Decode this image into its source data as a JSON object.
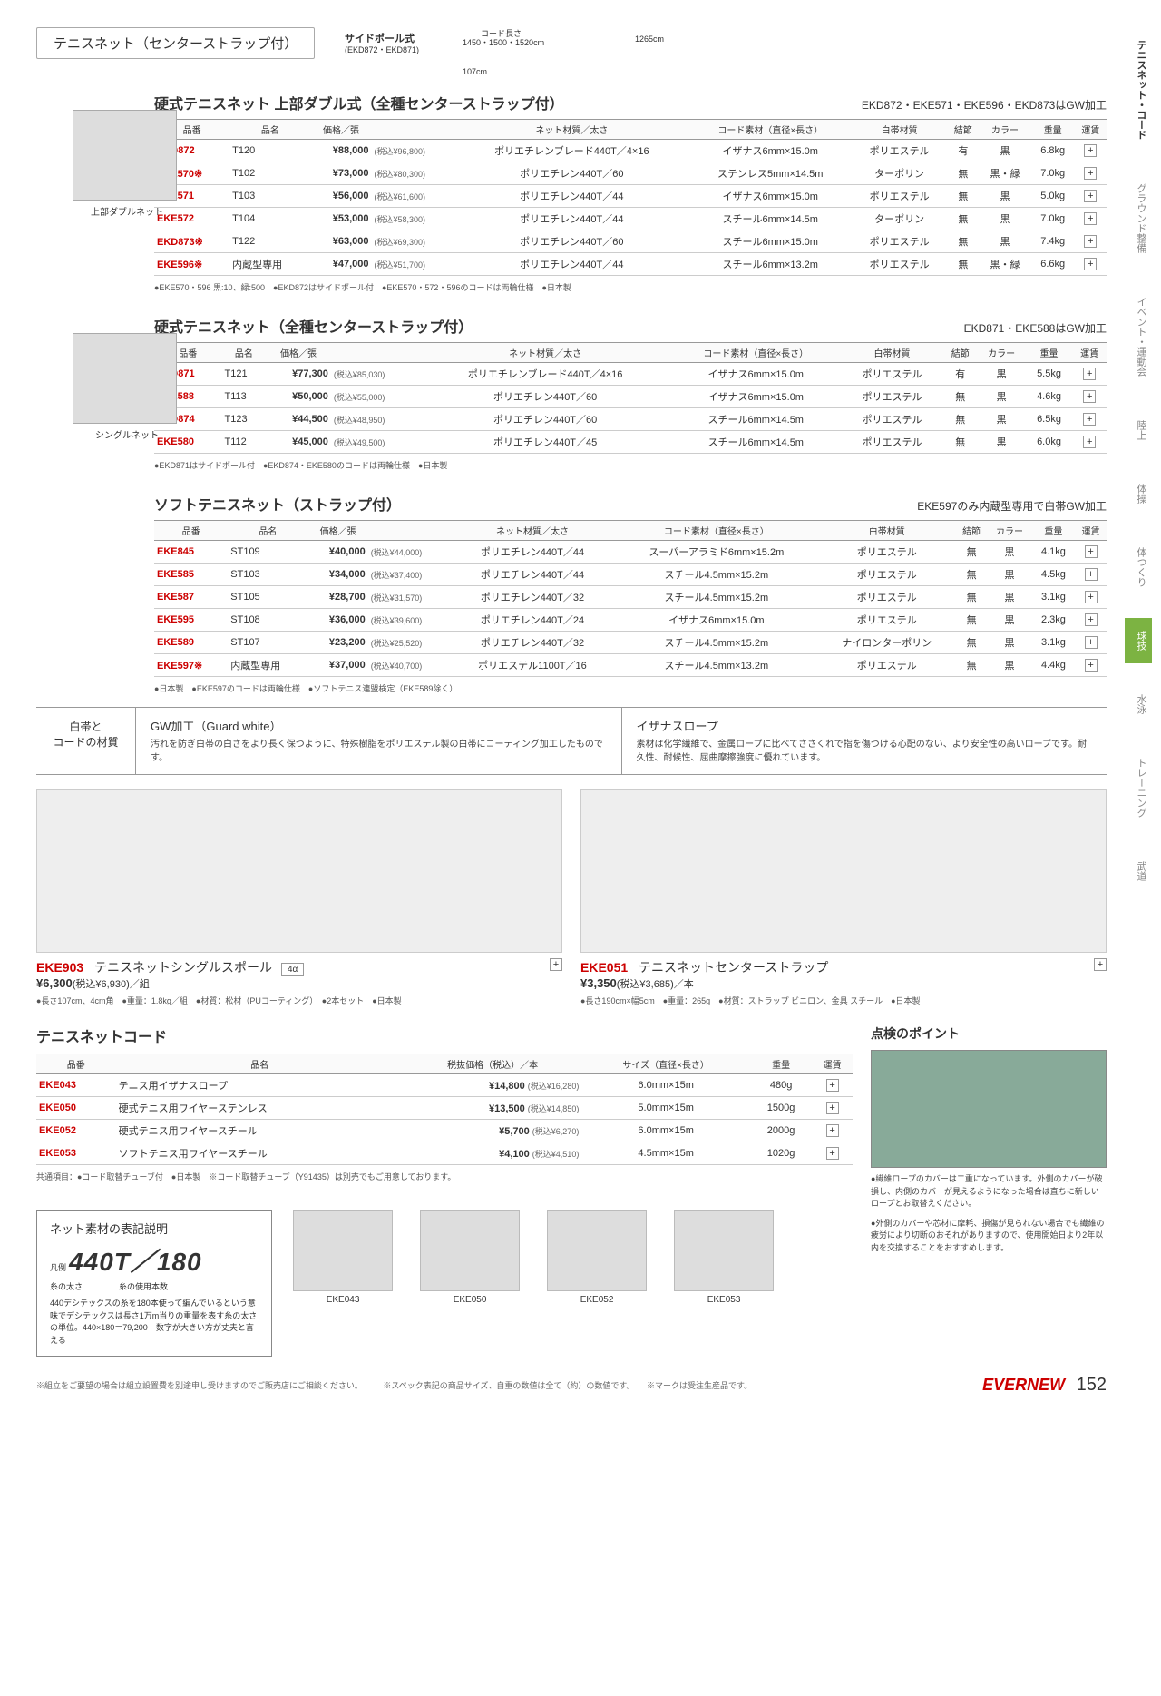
{
  "page_title": "テニスネット（センターストラップ付）",
  "diagram_label": "サイドポール式",
  "diagram_sub": "(EKD872・EKD871)",
  "diagram_cord": "コード長さ",
  "diagram_cord_len": "1450・1500・1520cm",
  "diagram_width": "1265cm",
  "diagram_height": "107cm",
  "sections": [
    {
      "title": "硬式テニスネット 上部ダブル式（全種センターストラップ付）",
      "note": "EKD872・EKE571・EKE596・EKD873はGW加工",
      "thumb_cap": "上部ダブルネット",
      "headers": [
        "品番",
        "品名",
        "価格／張",
        "",
        "ネット材質／太さ",
        "コード素材（直径×長さ）",
        "白帯材質",
        "結節",
        "カラー",
        "重量",
        "運賃"
      ],
      "rows": [
        {
          "code": "EKD872",
          "name": "T120",
          "price": "¥88,000",
          "tax": "(税込¥96,800)",
          "mat": "ポリエチレンブレード440T／4×16",
          "cord": "イザナス6mm×15.0m",
          "belt": "ポリエステル",
          "knot": "有",
          "color": "黒",
          "wt": "6.8kg"
        },
        {
          "code": "EKE570※",
          "name": "T102",
          "price": "¥73,000",
          "tax": "(税込¥80,300)",
          "mat": "ポリエチレン440T／60",
          "cord": "ステンレス5mm×14.5m",
          "belt": "ターポリン",
          "knot": "無",
          "color": "黒・緑",
          "wt": "7.0kg"
        },
        {
          "code": "EKE571",
          "name": "T103",
          "price": "¥56,000",
          "tax": "(税込¥61,600)",
          "mat": "ポリエチレン440T／44",
          "cord": "イザナス6mm×15.0m",
          "belt": "ポリエステル",
          "knot": "無",
          "color": "黒",
          "wt": "5.0kg"
        },
        {
          "code": "EKE572",
          "name": "T104",
          "price": "¥53,000",
          "tax": "(税込¥58,300)",
          "mat": "ポリエチレン440T／44",
          "cord": "スチール6mm×14.5m",
          "belt": "ターポリン",
          "knot": "無",
          "color": "黒",
          "wt": "7.0kg"
        },
        {
          "code": "EKD873※",
          "name": "T122",
          "price": "¥63,000",
          "tax": "(税込¥69,300)",
          "mat": "ポリエチレン440T／60",
          "cord": "スチール6mm×15.0m",
          "belt": "ポリエステル",
          "knot": "無",
          "color": "黒",
          "wt": "7.4kg"
        },
        {
          "code": "EKE596※",
          "name": "内蔵型専用",
          "price": "¥47,000",
          "tax": "(税込¥51,700)",
          "mat": "ポリエチレン440T／44",
          "cord": "スチール6mm×13.2m",
          "belt": "ポリエステル",
          "knot": "無",
          "color": "黒・緑",
          "wt": "6.6kg"
        }
      ],
      "footnote": "●EKE570・596 黒:10、緑:500　●EKD872はサイドポール付　●EKE570・572・596のコードは両輪仕様　●日本製"
    },
    {
      "title": "硬式テニスネット（全種センターストラップ付）",
      "note": "EKD871・EKE588はGW加工",
      "thumb_cap": "シングルネット",
      "headers": [
        "品番",
        "品名",
        "価格／張",
        "",
        "ネット材質／太さ",
        "コード素材（直径×長さ）",
        "白帯材質",
        "結節",
        "カラー",
        "重量",
        "運賃"
      ],
      "rows": [
        {
          "code": "EKD871",
          "name": "T121",
          "price": "¥77,300",
          "tax": "(税込¥85,030)",
          "mat": "ポリエチレンブレード440T／4×16",
          "cord": "イザナス6mm×15.0m",
          "belt": "ポリエステル",
          "knot": "有",
          "color": "黒",
          "wt": "5.5kg"
        },
        {
          "code": "EKE588",
          "name": "T113",
          "price": "¥50,000",
          "tax": "(税込¥55,000)",
          "mat": "ポリエチレン440T／60",
          "cord": "イザナス6mm×15.0m",
          "belt": "ポリエステル",
          "knot": "無",
          "color": "黒",
          "wt": "4.6kg"
        },
        {
          "code": "EKD874",
          "name": "T123",
          "price": "¥44,500",
          "tax": "(税込¥48,950)",
          "mat": "ポリエチレン440T／60",
          "cord": "スチール6mm×14.5m",
          "belt": "ポリエステル",
          "knot": "無",
          "color": "黒",
          "wt": "6.5kg"
        },
        {
          "code": "EKE580",
          "name": "T112",
          "price": "¥45,000",
          "tax": "(税込¥49,500)",
          "mat": "ポリエチレン440T／45",
          "cord": "スチール6mm×14.5m",
          "belt": "ポリエステル",
          "knot": "無",
          "color": "黒",
          "wt": "6.0kg"
        }
      ],
      "footnote": "●EKD871はサイドポール付　●EKD874・EKE580のコードは両輪仕様　●日本製"
    },
    {
      "title": "ソフトテニスネット（ストラップ付）",
      "note": "EKE597のみ内蔵型専用で白帯GW加工",
      "thumb_cap": "",
      "headers": [
        "品番",
        "品名",
        "価格／張",
        "",
        "ネット材質／太さ",
        "コード素材（直径×長さ）",
        "白帯材質",
        "結節",
        "カラー",
        "重量",
        "運賃"
      ],
      "rows": [
        {
          "code": "EKE845",
          "name": "ST109",
          "price": "¥40,000",
          "tax": "(税込¥44,000)",
          "mat": "ポリエチレン440T／44",
          "cord": "スーパーアラミド6mm×15.2m",
          "belt": "ポリエステル",
          "knot": "無",
          "color": "黒",
          "wt": "4.1kg"
        },
        {
          "code": "EKE585",
          "name": "ST103",
          "price": "¥34,000",
          "tax": "(税込¥37,400)",
          "mat": "ポリエチレン440T／44",
          "cord": "スチール4.5mm×15.2m",
          "belt": "ポリエステル",
          "knot": "無",
          "color": "黒",
          "wt": "4.5kg"
        },
        {
          "code": "EKE587",
          "name": "ST105",
          "price": "¥28,700",
          "tax": "(税込¥31,570)",
          "mat": "ポリエチレン440T／32",
          "cord": "スチール4.5mm×15.2m",
          "belt": "ポリエステル",
          "knot": "無",
          "color": "黒",
          "wt": "3.1kg"
        },
        {
          "code": "EKE595",
          "name": "ST108",
          "price": "¥36,000",
          "tax": "(税込¥39,600)",
          "mat": "ポリエチレン440T／24",
          "cord": "イザナス6mm×15.0m",
          "belt": "ポリエステル",
          "knot": "無",
          "color": "黒",
          "wt": "2.3kg"
        },
        {
          "code": "EKE589",
          "name": "ST107",
          "price": "¥23,200",
          "tax": "(税込¥25,520)",
          "mat": "ポリエチレン440T／32",
          "cord": "スチール4.5mm×15.2m",
          "belt": "ナイロンターポリン",
          "knot": "無",
          "color": "黒",
          "wt": "3.1kg"
        },
        {
          "code": "EKE597※",
          "name": "内蔵型専用",
          "price": "¥37,000",
          "tax": "(税込¥40,700)",
          "mat": "ポリエステル1100T／16",
          "cord": "スチール4.5mm×13.2m",
          "belt": "ポリエステル",
          "knot": "無",
          "color": "黒",
          "wt": "4.4kg"
        }
      ],
      "footnote": "●日本製　●EKE597のコードは両輪仕様　●ソフトテニス連盟検定（EKE589除く）"
    }
  ],
  "info_label": "白帯と\nコードの材質",
  "info_gw_title": "GW加工（Guard white）",
  "info_gw_desc": "汚れを防ぎ白帯の白さをより長く保つように、特殊樹脂をポリエステル製の白帯にコーティング加工したものです。",
  "info_iz_title": "イザナスロープ",
  "info_iz_desc": "素材は化学繊維で、金属ロープに比べてささくれで指を傷つける心配のない、より安全性の高いロープです。耐久性、耐候性、屈曲摩擦強度に優れています。",
  "card1": {
    "code": "EKE903",
    "name": "テニスネットシングルスポール",
    "price": "¥6,300",
    "tax": "(税込¥6,930)／組",
    "badge": "4α",
    "desc": "●長さ107cm、4cm角　●重量：1.8kg／組　●材質：松材（PUコーティング）　●2本セット　●日本製"
  },
  "card2": {
    "code": "EKE051",
    "name": "テニスネットセンターストラップ",
    "price": "¥3,350",
    "tax": "(税込¥3,685)／本",
    "desc": "●長さ190cm×幅5cm　●重量：265g　●材質：ストラップ ビニロン、金具 スチール　●日本製"
  },
  "cord_title": "テニスネットコード",
  "cord_headers": [
    "品番",
    "品名",
    "税抜価格（税込）／本",
    "サイズ（直径×長さ）",
    "重量",
    "運賃"
  ],
  "cord_rows": [
    {
      "code": "EKE043",
      "name": "テニス用イザナスロープ",
      "price": "¥14,800",
      "tax": "(税込¥16,280)",
      "size": "6.0mm×15m",
      "wt": "480g"
    },
    {
      "code": "EKE050",
      "name": "硬式テニス用ワイヤーステンレス",
      "price": "¥13,500",
      "tax": "(税込¥14,850)",
      "size": "5.0mm×15m",
      "wt": "1500g"
    },
    {
      "code": "EKE052",
      "name": "硬式テニス用ワイヤースチール",
      "price": "¥5,700",
      "tax": "(税込¥6,270)",
      "size": "6.0mm×15m",
      "wt": "2000g"
    },
    {
      "code": "EKE053",
      "name": "ソフトテニス用ワイヤースチール",
      "price": "¥4,100",
      "tax": "(税込¥4,510)",
      "size": "4.5mm×15m",
      "wt": "1020g"
    }
  ],
  "cord_footnote": "共通項目：●コード取替チューブ付　●日本製　※コード取替チューブ（Y91435）は別売でもご用意しております。",
  "inspection_title": "点検のポイント",
  "inspection_text1": "●繊維ロープのカバーは二重になっています。外側のカバーが破損し、内側のカバーが見えるようになった場合は直ちに新しいロープとお取替えください。",
  "inspection_text2": "●外側のカバーや芯材に摩耗、損傷が見られない場合でも繊維の疲労により切断のおそれがありますので、使用開始日より2年以内を交換することをおすすめします。",
  "material_title": "ネット素材の表記説明",
  "material_legend": "凡例",
  "material_big": "440T／180",
  "material_l1": "糸の太さ",
  "material_l2": "糸の使用本数",
  "material_desc": "440デシテックスの糸を180本使って編んでいるという意味でデシテックスは長さ1万m当りの重量を表す糸の太さの単位。440×180＝79,200　数字が大きい方が丈夫と言える",
  "cord_img_labels": [
    "EKE043",
    "EKE050",
    "EKE052",
    "EKE053"
  ],
  "sidebar": [
    "テニスネット・コード",
    "グラウンド整備",
    "イベント・運動会",
    "陸上",
    "体操",
    "体つくり",
    "球技",
    "水泳",
    "トレーニング",
    "武道"
  ],
  "sidebar_active_index": 6,
  "footer_note": "※組立をご要望の場合は組立設置費を別途申し受けますのでご販売店にご相談ください。　　　※スペック表記の商品サイズ、自重の数値は全て（約）の数値です。　　※マークは受注生産品です。",
  "brand": "EVERNEW",
  "page_number": "152"
}
